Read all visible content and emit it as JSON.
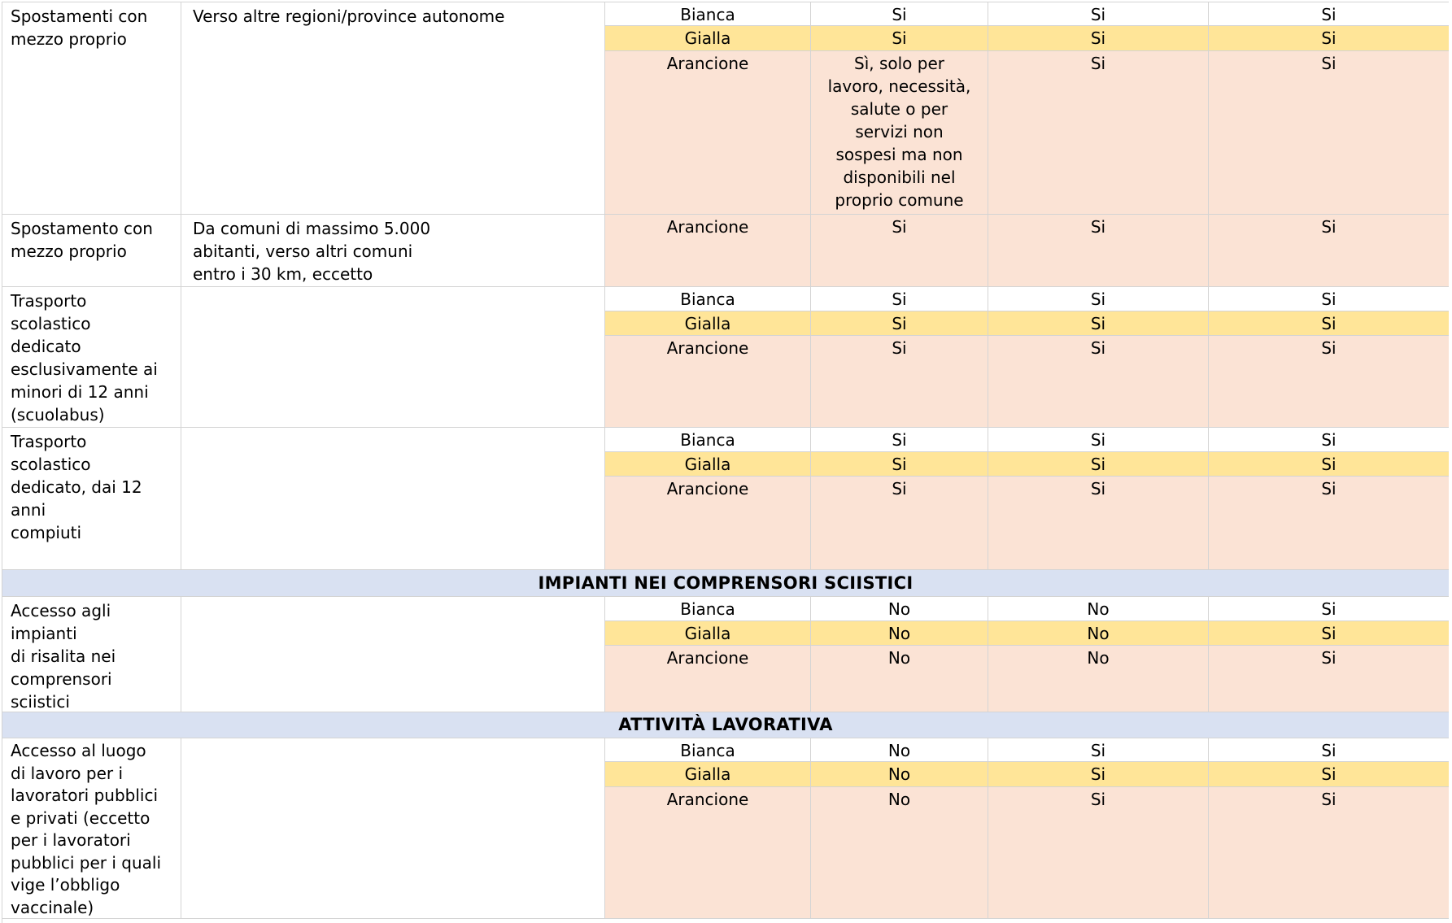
{
  "colors": {
    "bianca_bg": "#FFFFFF",
    "gialla_bg": "#FFE598",
    "arancione_bg": "#FBE3D5",
    "section_bg": "#D9E1F2",
    "grid": "#D4D4D4",
    "text": "#000000"
  },
  "sections": {
    "s1": {
      "title": "IMPIANTI NEI COMPRENSORI SCIISTICI"
    },
    "s2": {
      "title": "ATTIVITÀ LAVORATIVA"
    }
  },
  "rows": {
    "r1": {
      "activity": "Spostamenti con\nmezzo proprio",
      "description": "Verso altre regioni/province autonome",
      "bands": [
        {
          "zone": "Bianca",
          "values": [
            "Si",
            "Si",
            "Si"
          ]
        },
        {
          "zone": "Gialla",
          "values": [
            "Si",
            "Si",
            "Si"
          ]
        },
        {
          "zone": "Arancione",
          "values": [
            "Sì, solo per\nlavoro, necessità,\nsalute o per\nservizi non\nsospesi ma non\ndisponibili nel\nproprio comune",
            "Si",
            "Si"
          ]
        }
      ]
    },
    "r2": {
      "activity": "Spostamento con\nmezzo proprio",
      "description": "Da comuni di massimo 5.000\nabitanti, verso altri comuni\nentro i 30 km, eccetto",
      "bands": [
        {
          "zone": "Arancione",
          "values": [
            "Si",
            "Si",
            "Si"
          ]
        }
      ]
    },
    "r3": {
      "activity": "Trasporto\nscolastico\ndedicato\nesclusivamente ai\nminori di 12 anni\n(scuolabus)",
      "description": "",
      "bands": [
        {
          "zone": "Bianca",
          "values": [
            "Si",
            "Si",
            "Si"
          ]
        },
        {
          "zone": "Gialla",
          "values": [
            "Si",
            "Si",
            "Si"
          ]
        },
        {
          "zone": "Arancione",
          "values": [
            "Si",
            "Si",
            "Si"
          ]
        }
      ]
    },
    "r4": {
      "activity": "Trasporto\nscolastico\ndedicato, dai 12\nanni\ncompiuti",
      "description": "",
      "bands": [
        {
          "zone": "Bianca",
          "values": [
            "Si",
            "Si",
            "Si"
          ]
        },
        {
          "zone": "Gialla",
          "values": [
            "Si",
            "Si",
            "Si"
          ]
        },
        {
          "zone": "Arancione",
          "values": [
            "Si",
            "Si",
            "Si"
          ]
        }
      ]
    },
    "r5": {
      "activity": "Accesso agli\nimpianti\ndi risalita nei\ncomprensori\nsciistici",
      "description": "",
      "bands": [
        {
          "zone": "Bianca",
          "values": [
            "No",
            "No",
            "Si"
          ]
        },
        {
          "zone": "Gialla",
          "values": [
            "No",
            "No",
            "Si"
          ]
        },
        {
          "zone": "Arancione",
          "values": [
            "No",
            "No",
            "Si"
          ]
        }
      ]
    },
    "r6": {
      "activity": "Accesso al luogo\ndi lavoro per i\nlavoratori pubblici\ne privati (eccetto\nper i lavoratori\npubblici per i quali\nvige l’obbligo\nvaccinale)",
      "description": "",
      "bands": [
        {
          "zone": "Bianca",
          "values": [
            "No",
            "Si",
            "Si"
          ]
        },
        {
          "zone": "Gialla",
          "values": [
            "No",
            "Si",
            "Si"
          ]
        },
        {
          "zone": "Arancione",
          "values": [
            "No",
            "Si",
            "Si"
          ]
        }
      ]
    }
  }
}
